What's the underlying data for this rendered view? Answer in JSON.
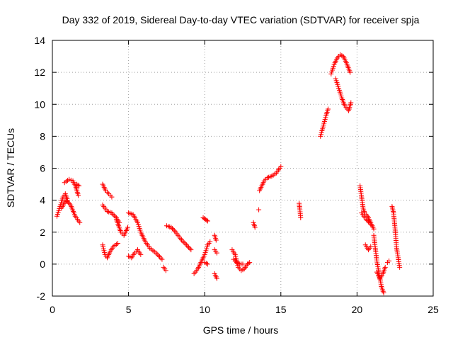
{
  "chart_data": {
    "type": "scatter",
    "title": "Day 332 of 2019, Sidereal Day-to-day VTEC variation (SDTVAR) for receiver spja",
    "xlabel": "GPS time / hours",
    "ylabel": "SDTVAR / TECUs",
    "xlim": [
      0,
      25
    ],
    "ylim": [
      -2,
      14
    ],
    "xticks": [
      0,
      5,
      10,
      15,
      20,
      25
    ],
    "yticks": [
      -2,
      0,
      2,
      4,
      6,
      8,
      10,
      12,
      14
    ],
    "grid": true,
    "marker": "+",
    "color": "#ff0000",
    "segments": [
      [
        [
          0.3,
          3.0
        ],
        [
          0.5,
          3.6
        ],
        [
          0.7,
          4.2
        ],
        [
          0.85,
          4.4
        ],
        [
          1.0,
          4.0
        ]
      ],
      [
        [
          0.6,
          3.5
        ],
        [
          0.9,
          4.0
        ],
        [
          1.2,
          3.7
        ],
        [
          1.5,
          3.0
        ],
        [
          1.8,
          2.6
        ]
      ],
      [
        [
          0.8,
          5.1
        ],
        [
          1.1,
          5.3
        ],
        [
          1.35,
          5.2
        ],
        [
          1.55,
          4.8
        ],
        [
          1.7,
          4.3
        ]
      ],
      [
        [
          1.6,
          5.0
        ],
        [
          1.75,
          4.9
        ]
      ],
      [
        [
          3.3,
          5.0
        ],
        [
          3.5,
          4.6
        ],
        [
          3.7,
          4.4
        ],
        [
          3.9,
          4.2
        ]
      ],
      [
        [
          3.3,
          3.7
        ],
        [
          3.6,
          3.3
        ],
        [
          3.9,
          3.2
        ],
        [
          4.2,
          2.9
        ],
        [
          4.4,
          2.6
        ]
      ],
      [
        [
          3.3,
          1.2
        ],
        [
          3.45,
          0.6
        ],
        [
          3.6,
          0.4
        ],
        [
          3.8,
          0.8
        ],
        [
          4.0,
          1.1
        ],
        [
          4.3,
          1.3
        ]
      ],
      [
        [
          4.2,
          2.8
        ],
        [
          4.35,
          2.4
        ],
        [
          4.5,
          2.0
        ],
        [
          4.7,
          1.8
        ],
        [
          4.95,
          2.3
        ]
      ],
      [
        [
          5.0,
          3.2
        ],
        [
          5.3,
          3.1
        ],
        [
          5.6,
          2.6
        ],
        [
          5.8,
          2.0
        ],
        [
          6.1,
          1.4
        ],
        [
          6.4,
          1.0
        ],
        [
          6.8,
          0.7
        ],
        [
          7.2,
          0.3
        ]
      ],
      [
        [
          5.0,
          0.5
        ],
        [
          5.2,
          0.4
        ],
        [
          5.4,
          0.7
        ],
        [
          5.6,
          0.9
        ],
        [
          5.8,
          0.6
        ]
      ],
      [
        [
          7.3,
          -0.2
        ],
        [
          7.45,
          -0.4
        ]
      ],
      [
        [
          7.5,
          2.4
        ],
        [
          7.8,
          2.3
        ],
        [
          8.1,
          2.0
        ],
        [
          8.4,
          1.6
        ],
        [
          8.8,
          1.2
        ],
        [
          9.1,
          0.9
        ]
      ],
      [
        [
          9.3,
          -0.6
        ],
        [
          9.55,
          -0.3
        ],
        [
          9.8,
          0.2
        ],
        [
          10.0,
          0.6
        ],
        [
          10.2,
          1.2
        ],
        [
          10.35,
          1.4
        ]
      ],
      [
        [
          9.9,
          2.9
        ],
        [
          10.05,
          2.8
        ],
        [
          10.2,
          2.7
        ]
      ],
      [
        [
          10.0,
          0.1
        ],
        [
          10.2,
          0.0
        ]
      ],
      [
        [
          10.65,
          1.8
        ],
        [
          10.75,
          1.5
        ]
      ],
      [
        [
          10.65,
          0.9
        ],
        [
          10.8,
          0.7
        ]
      ],
      [
        [
          10.65,
          -0.6
        ],
        [
          10.8,
          -0.9
        ]
      ],
      [
        [
          11.8,
          0.9
        ],
        [
          12.0,
          0.6
        ],
        [
          12.2,
          -0.2
        ],
        [
          12.4,
          -0.4
        ],
        [
          12.6,
          -0.3
        ],
        [
          12.8,
          0.0
        ],
        [
          12.95,
          0.1
        ]
      ],
      [
        [
          11.9,
          0.3
        ],
        [
          12.1,
          0.1
        ],
        [
          12.3,
          0.0
        ],
        [
          12.5,
          0.0
        ]
      ],
      [
        [
          13.2,
          2.6
        ],
        [
          13.3,
          2.3
        ]
      ],
      [
        [
          13.55,
          3.4
        ]
      ],
      [
        [
          13.6,
          4.6
        ],
        [
          13.75,
          4.9
        ],
        [
          13.9,
          5.2
        ],
        [
          14.1,
          5.4
        ],
        [
          14.4,
          5.5
        ],
        [
          14.7,
          5.7
        ],
        [
          15.0,
          6.1
        ]
      ],
      [
        [
          16.2,
          3.8
        ],
        [
          16.25,
          3.4
        ],
        [
          16.3,
          2.9
        ]
      ],
      [
        [
          17.6,
          8.0
        ],
        [
          17.8,
          8.7
        ],
        [
          18.0,
          9.4
        ],
        [
          18.1,
          9.7
        ]
      ],
      [
        [
          18.3,
          11.9
        ],
        [
          18.5,
          12.5
        ],
        [
          18.7,
          12.9
        ],
        [
          18.9,
          13.1
        ],
        [
          19.1,
          13.0
        ],
        [
          19.3,
          12.6
        ],
        [
          19.55,
          12.0
        ]
      ],
      [
        [
          18.6,
          11.6
        ],
        [
          18.8,
          11.0
        ],
        [
          19.0,
          10.4
        ],
        [
          19.2,
          9.9
        ],
        [
          19.45,
          9.6
        ],
        [
          19.6,
          10.1
        ]
      ],
      [
        [
          20.2,
          4.9
        ],
        [
          20.3,
          4.2
        ],
        [
          20.4,
          3.5
        ],
        [
          20.5,
          3.2
        ],
        [
          20.7,
          3.0
        ],
        [
          20.9,
          2.6
        ],
        [
          21.1,
          2.2
        ]
      ],
      [
        [
          20.3,
          3.2
        ],
        [
          20.6,
          2.8
        ],
        [
          20.9,
          2.5
        ]
      ],
      [
        [
          20.55,
          1.2
        ],
        [
          20.75,
          0.9
        ],
        [
          20.9,
          1.1
        ]
      ],
      [
        [
          21.1,
          1.8
        ],
        [
          21.2,
          1.0
        ],
        [
          21.3,
          0.2
        ],
        [
          21.45,
          -0.6
        ],
        [
          21.6,
          -1.4
        ],
        [
          21.75,
          -1.8
        ]
      ],
      [
        [
          21.3,
          -0.5
        ],
        [
          21.5,
          -0.9
        ],
        [
          21.7,
          -0.6
        ],
        [
          21.85,
          -0.2
        ]
      ],
      [
        [
          22.0,
          0.1
        ],
        [
          22.1,
          0.2
        ]
      ],
      [
        [
          22.3,
          3.6
        ],
        [
          22.4,
          3.2
        ],
        [
          22.5,
          2.2
        ],
        [
          22.6,
          1.0
        ],
        [
          22.7,
          0.4
        ],
        [
          22.8,
          -0.2
        ]
      ]
    ]
  }
}
